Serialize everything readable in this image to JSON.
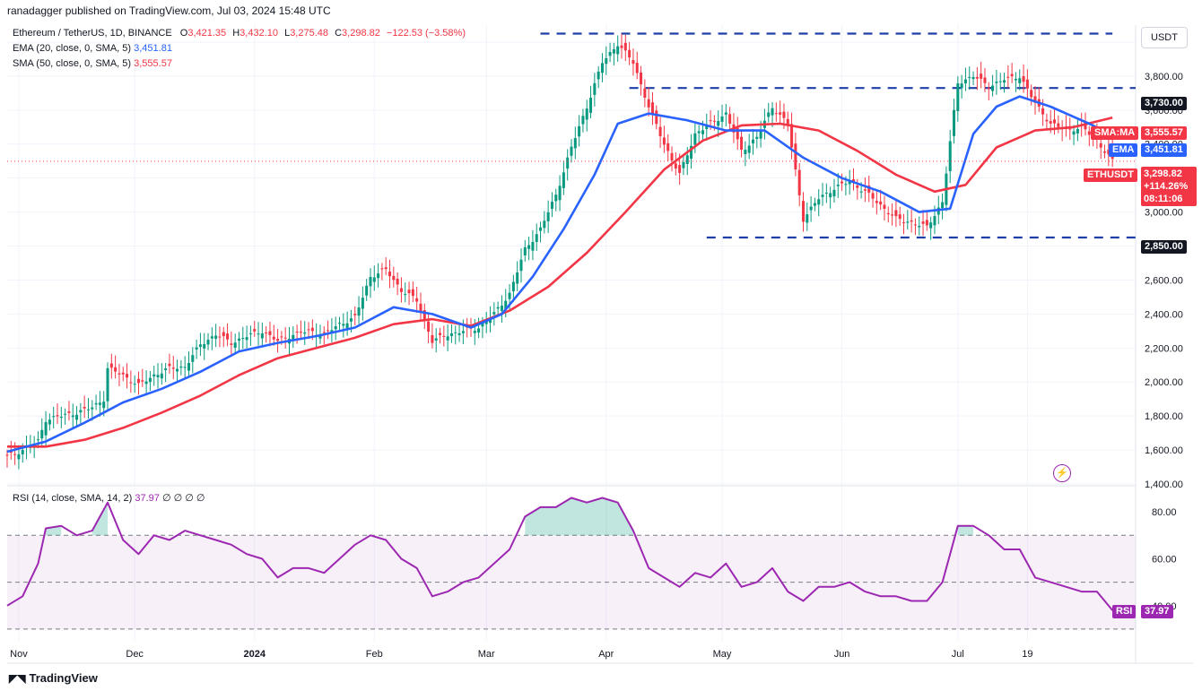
{
  "publisher": "ranadagger published on TradingView.com, Jul 03, 2024 15:48 UTC",
  "header": {
    "symbol": "Ethereum / TetherUS, 1D, BINANCE",
    "o_label": "O",
    "o": "3,421.35",
    "h_label": "H",
    "h": "3,432.10",
    "l_label": "L",
    "l": "3,275.48",
    "c_label": "C",
    "c": "3,298.82",
    "change": "−122.53 (−3.58%)",
    "ema_label": "EMA (20, close, 0, SMA, 5)",
    "ema_value": "3,451.81",
    "sma_label": "SMA (50, close, 0, SMA, 5)",
    "sma_value": "3,555.57"
  },
  "rsi_header": {
    "label": "RSI (14, close, SMA, 14, 2)",
    "value": "37.97",
    "extra": "∅ ∅ ∅ ∅"
  },
  "currency": "USDT",
  "price_tags": {
    "sma": {
      "label": "SMA:MA",
      "value": "3,555.57",
      "color": "#f23645"
    },
    "ema": {
      "label": "EMA",
      "value": "3,451.81",
      "color": "#2962ff"
    },
    "last": {
      "label": "ETHUSDT",
      "value": "3,298.82",
      "pct": "+114.26%",
      "timer": "08:11:06",
      "color": "#f23645"
    },
    "rsi": {
      "label": "RSI",
      "value": "37.97",
      "color": "#9c27b0"
    }
  },
  "levels": {
    "top": "3,730.00",
    "bottom": "2,850.00"
  },
  "brand": "TradingView",
  "chart_data": [
    {
      "type": "candlestick",
      "title": "Ethereum / TetherUS, 1D, BINANCE",
      "ylim": [
        1400,
        4100
      ],
      "y_ticks": [
        "1,400.00",
        "1,600.00",
        "1,800.00",
        "2,000.00",
        "2,200.00",
        "2,400.00",
        "2,600.00",
        "2,800.00",
        "3,000.00",
        "3,200.00",
        "3,400.00",
        "3,600.00",
        "3,800.00",
        "4,000.00"
      ],
      "y_tick_values": [
        1400,
        1600,
        1800,
        2000,
        2200,
        2400,
        2600,
        2800,
        3000,
        3200,
        3400,
        3600,
        3800,
        4000
      ],
      "x_labels": [
        "Nov",
        "Dec",
        "2024",
        "Feb",
        "Mar",
        "Apr",
        "May",
        "Jun",
        "Jul",
        "19"
      ],
      "x_label_days": [
        3,
        33,
        64,
        95,
        124,
        155,
        185,
        216,
        246,
        264
      ],
      "horizontal_levels": [
        4050,
        3730,
        2850
      ],
      "series": [
        {
          "name": "ETHUSDT",
          "kind": "ohlc-close-path",
          "points_day_close": [
            [
              0,
              1560
            ],
            [
              4,
              1600
            ],
            [
              8,
              1650
            ],
            [
              10,
              1780
            ],
            [
              14,
              1800
            ],
            [
              18,
              1820
            ],
            [
              22,
              1850
            ],
            [
              25,
              1900
            ],
            [
              26,
              2080
            ],
            [
              30,
              2040
            ],
            [
              34,
              1980
            ],
            [
              38,
              2040
            ],
            [
              42,
              2080
            ],
            [
              46,
              2090
            ],
            [
              50,
              2220
            ],
            [
              54,
              2280
            ],
            [
              58,
              2230
            ],
            [
              62,
              2270
            ],
            [
              66,
              2300
            ],
            [
              70,
              2240
            ],
            [
              74,
              2280
            ],
            [
              78,
              2300
            ],
            [
              82,
              2280
            ],
            [
              86,
              2340
            ],
            [
              90,
              2380
            ],
            [
              94,
              2620
            ],
            [
              98,
              2660
            ],
            [
              102,
              2540
            ],
            [
              106,
              2480
            ],
            [
              110,
              2240
            ],
            [
              114,
              2280
            ],
            [
              118,
              2300
            ],
            [
              122,
              2320
            ],
            [
              126,
              2400
            ],
            [
              130,
              2520
            ],
            [
              134,
              2780
            ],
            [
              138,
              2900
            ],
            [
              142,
              3100
            ],
            [
              146,
              3380
            ],
            [
              150,
              3620
            ],
            [
              154,
              3880
            ],
            [
              158,
              3990
            ],
            [
              162,
              3880
            ],
            [
              166,
              3620
            ],
            [
              170,
              3400
            ],
            [
              174,
              3220
            ],
            [
              178,
              3460
            ],
            [
              182,
              3520
            ],
            [
              186,
              3580
            ],
            [
              190,
              3360
            ],
            [
              194,
              3440
            ],
            [
              198,
              3620
            ],
            [
              202,
              3520
            ],
            [
              206,
              2960
            ],
            [
              210,
              3080
            ],
            [
              214,
              3140
            ],
            [
              218,
              3180
            ],
            [
              222,
              3120
            ],
            [
              226,
              3040
            ],
            [
              230,
              2960
            ],
            [
              234,
              2940
            ],
            [
              238,
              2910
            ],
            [
              242,
              3060
            ],
            [
              246,
              3760
            ],
            [
              250,
              3800
            ],
            [
              254,
              3740
            ],
            [
              258,
              3780
            ],
            [
              262,
              3800
            ],
            [
              266,
              3640
            ],
            [
              270,
              3520
            ],
            [
              274,
              3480
            ],
            [
              278,
              3500
            ],
            [
              282,
              3420
            ],
            [
              286,
              3300
            ]
          ]
        },
        {
          "name": "EMA (20, close, 0, SMA, 5)",
          "kind": "line",
          "color": "#2962ff",
          "points_day_value": [
            [
              0,
              1590
            ],
            [
              10,
              1650
            ],
            [
              20,
              1760
            ],
            [
              30,
              1880
            ],
            [
              40,
              1960
            ],
            [
              50,
              2060
            ],
            [
              60,
              2180
            ],
            [
              70,
              2230
            ],
            [
              80,
              2270
            ],
            [
              90,
              2320
            ],
            [
              100,
              2440
            ],
            [
              110,
              2400
            ],
            [
              120,
              2320
            ],
            [
              128,
              2400
            ],
            [
              136,
              2620
            ],
            [
              144,
              2900
            ],
            [
              152,
              3220
            ],
            [
              158,
              3520
            ],
            [
              166,
              3580
            ],
            [
              176,
              3540
            ],
            [
              186,
              3480
            ],
            [
              196,
              3480
            ],
            [
              206,
              3320
            ],
            [
              216,
              3200
            ],
            [
              226,
              3120
            ],
            [
              236,
              3000
            ],
            [
              244,
              3020
            ],
            [
              250,
              3460
            ],
            [
              256,
              3620
            ],
            [
              262,
              3680
            ],
            [
              270,
              3620
            ],
            [
              280,
              3520
            ],
            [
              286,
              3452
            ]
          ]
        },
        {
          "name": "SMA (50, close, 0, SMA, 5)",
          "kind": "line",
          "color": "#f23645",
          "points_day_value": [
            [
              0,
              1620
            ],
            [
              10,
              1620
            ],
            [
              20,
              1660
            ],
            [
              30,
              1730
            ],
            [
              40,
              1820
            ],
            [
              50,
              1920
            ],
            [
              60,
              2040
            ],
            [
              70,
              2140
            ],
            [
              80,
              2200
            ],
            [
              90,
              2260
            ],
            [
              100,
              2340
            ],
            [
              110,
              2370
            ],
            [
              120,
              2330
            ],
            [
              130,
              2420
            ],
            [
              140,
              2560
            ],
            [
              150,
              2760
            ],
            [
              160,
              3000
            ],
            [
              170,
              3250
            ],
            [
              180,
              3420
            ],
            [
              190,
              3510
            ],
            [
              200,
              3520
            ],
            [
              210,
              3480
            ],
            [
              220,
              3360
            ],
            [
              230,
              3220
            ],
            [
              240,
              3120
            ],
            [
              248,
              3160
            ],
            [
              256,
              3380
            ],
            [
              266,
              3480
            ],
            [
              276,
              3500
            ],
            [
              286,
              3556
            ]
          ]
        }
      ]
    },
    {
      "type": "line",
      "title": "RSI (14, close, SMA, 14, 2)",
      "ylim": [
        25,
        90
      ],
      "y_ticks": [
        "40.00",
        "60.00",
        "80.00"
      ],
      "y_tick_values": [
        40,
        60,
        80
      ],
      "bands": [
        30,
        50,
        70
      ],
      "series": [
        {
          "name": "RSI",
          "color": "#9c27b0",
          "points_day_value": [
            [
              0,
              40
            ],
            [
              4,
              44
            ],
            [
              8,
              58
            ],
            [
              10,
              73
            ],
            [
              14,
              74
            ],
            [
              18,
              70
            ],
            [
              22,
              72
            ],
            [
              26,
              84
            ],
            [
              30,
              68
            ],
            [
              34,
              62
            ],
            [
              38,
              70
            ],
            [
              42,
              68
            ],
            [
              46,
              72
            ],
            [
              50,
              70
            ],
            [
              54,
              68
            ],
            [
              58,
              66
            ],
            [
              62,
              62
            ],
            [
              66,
              60
            ],
            [
              70,
              52
            ],
            [
              74,
              56
            ],
            [
              78,
              56
            ],
            [
              82,
              54
            ],
            [
              86,
              60
            ],
            [
              90,
              66
            ],
            [
              94,
              70
            ],
            [
              98,
              68
            ],
            [
              102,
              60
            ],
            [
              106,
              56
            ],
            [
              110,
              44
            ],
            [
              114,
              46
            ],
            [
              118,
              50
            ],
            [
              122,
              52
            ],
            [
              126,
              58
            ],
            [
              130,
              64
            ],
            [
              134,
              78
            ],
            [
              138,
              82
            ],
            [
              142,
              82
            ],
            [
              146,
              86
            ],
            [
              150,
              84
            ],
            [
              154,
              86
            ],
            [
              158,
              84
            ],
            [
              162,
              72
            ],
            [
              166,
              56
            ],
            [
              170,
              52
            ],
            [
              174,
              48
            ],
            [
              178,
              54
            ],
            [
              182,
              52
            ],
            [
              186,
              58
            ],
            [
              190,
              48
            ],
            [
              194,
              50
            ],
            [
              198,
              56
            ],
            [
              202,
              46
            ],
            [
              206,
              42
            ],
            [
              210,
              48
            ],
            [
              214,
              48
            ],
            [
              218,
              50
            ],
            [
              222,
              46
            ],
            [
              226,
              44
            ],
            [
              230,
              44
            ],
            [
              234,
              42
            ],
            [
              238,
              42
            ],
            [
              242,
              50
            ],
            [
              246,
              74
            ],
            [
              250,
              74
            ],
            [
              254,
              70
            ],
            [
              258,
              64
            ],
            [
              262,
              64
            ],
            [
              266,
              52
            ],
            [
              270,
              50
            ],
            [
              274,
              48
            ],
            [
              278,
              46
            ],
            [
              282,
              46
            ],
            [
              286,
              38
            ]
          ]
        }
      ]
    }
  ]
}
